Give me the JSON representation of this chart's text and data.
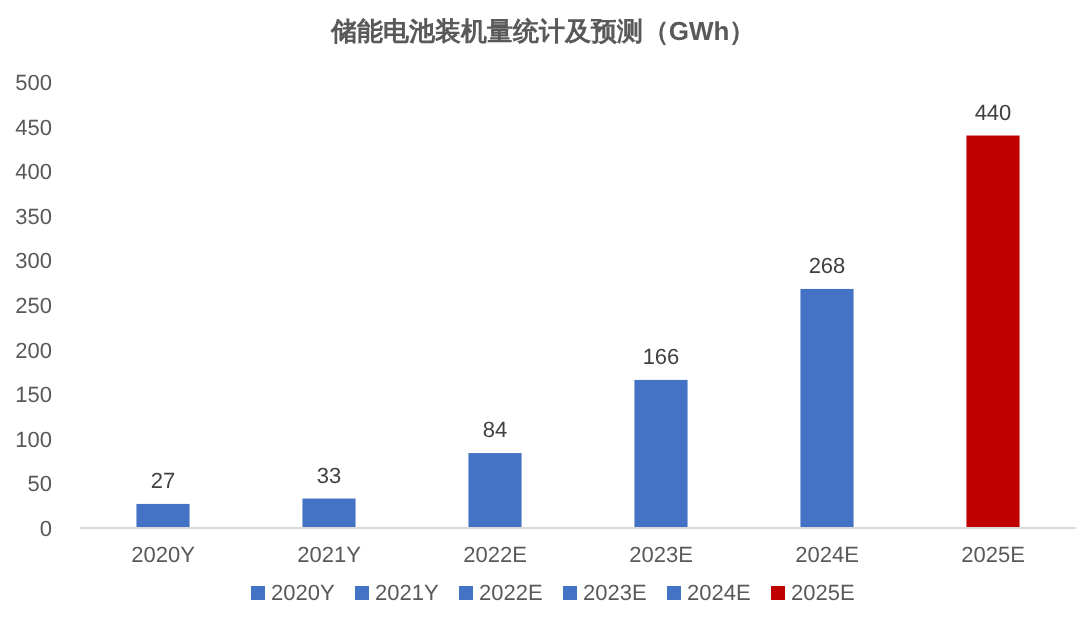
{
  "chart_data": {
    "type": "bar",
    "title": "储能电池装机量统计及预测（GWh）",
    "categories": [
      "2020Y",
      "2021Y",
      "2022E",
      "2023E",
      "2024E",
      "2025E"
    ],
    "stacked": true,
    "series": [
      {
        "name": "2020Y",
        "color": "#4472c4",
        "values": [
          27,
          null,
          null,
          null,
          null,
          null
        ]
      },
      {
        "name": "2021Y",
        "color": "#4472c4",
        "values": [
          null,
          33,
          null,
          null,
          null,
          null
        ]
      },
      {
        "name": "2022E",
        "color": "#4472c4",
        "values": [
          null,
          null,
          84,
          null,
          null,
          null
        ]
      },
      {
        "name": "2023E",
        "color": "#4472c4",
        "values": [
          null,
          null,
          null,
          166,
          null,
          null
        ]
      },
      {
        "name": "2024E",
        "color": "#4472c4",
        "values": [
          null,
          null,
          null,
          null,
          268,
          null
        ]
      },
      {
        "name": "2025E",
        "color": "#c00000",
        "values": [
          null,
          null,
          null,
          null,
          null,
          440
        ]
      }
    ],
    "ylim": [
      0,
      500
    ],
    "yticks": [
      0,
      50,
      100,
      150,
      200,
      250,
      300,
      350,
      400,
      450,
      500
    ],
    "data_labels": true,
    "legend": "bottom"
  }
}
